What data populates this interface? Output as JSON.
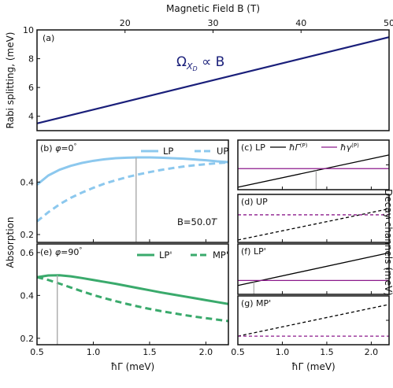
{
  "chart_data": [
    {
      "id": "a",
      "type": "line",
      "panel_label": "(a)",
      "xlabel": "Magnetic Field B (T)",
      "ylabel": "Rabi splitting, (meV)",
      "xlim": [
        10,
        50
      ],
      "ylim": [
        3,
        10
      ],
      "x_ticks": [
        "20",
        "30",
        "40",
        "50"
      ],
      "y_ticks": [
        "4",
        "6",
        "8",
        "10"
      ],
      "annotation": "Ω_{X_D} ∝ B",
      "annotation_main": "Ω",
      "annotation_sub": "X",
      "annotation_subsub": "D",
      "annotation_rest": " ∝ B",
      "series": [
        {
          "color": "#1a1f7a",
          "x": [
            10,
            50
          ],
          "y": [
            3.5,
            9.5
          ]
        }
      ]
    },
    {
      "id": "b",
      "type": "line",
      "panel_label": "(b) φ=0°",
      "panel_text": "(b) ",
      "panel_phi": "φ",
      "panel_eq": "=0",
      "panel_deg": "°",
      "annotation": "B=50.0T",
      "annotation_text": "B=50.0",
      "annotation_unit": "T",
      "ylabel": "Absorption",
      "xlim": [
        0.5,
        2.2
      ],
      "ylim": [
        0.17,
        0.56
      ],
      "y_ticks": [
        "0.2",
        "0.4"
      ],
      "marker_x": 1.38,
      "series": [
        {
          "name": "LP",
          "color": "#8cc8ee",
          "dash": false,
          "x": [
            0.5,
            0.6,
            0.7,
            0.8,
            0.9,
            1.0,
            1.1,
            1.2,
            1.3,
            1.4,
            1.5,
            1.6,
            1.7,
            1.8,
            1.9,
            2.0,
            2.1,
            2.2
          ],
          "y": [
            0.39,
            0.425,
            0.447,
            0.462,
            0.473,
            0.481,
            0.487,
            0.491,
            0.493,
            0.494,
            0.494,
            0.493,
            0.491,
            0.489,
            0.486,
            0.483,
            0.479,
            0.476
          ]
        },
        {
          "name": "UP",
          "color": "#8cc8ee",
          "dash": true,
          "x": [
            0.5,
            0.6,
            0.7,
            0.8,
            0.9,
            1.0,
            1.1,
            1.2,
            1.3,
            1.4,
            1.5,
            1.6,
            1.7,
            1.8,
            1.9,
            2.0,
            2.1,
            2.2
          ],
          "y": [
            0.25,
            0.285,
            0.315,
            0.34,
            0.36,
            0.378,
            0.394,
            0.407,
            0.419,
            0.429,
            0.438,
            0.446,
            0.453,
            0.459,
            0.464,
            0.468,
            0.472,
            0.475
          ]
        }
      ]
    },
    {
      "id": "e",
      "type": "line",
      "panel_label": "(e) φ=90°",
      "panel_text": "(e) ",
      "panel_phi": "φ",
      "panel_eq": "=90",
      "panel_deg": "°",
      "xlabel": "ħΓ (meV)",
      "xlim": [
        0.5,
        2.2
      ],
      "ylim": [
        0.17,
        0.64
      ],
      "x_ticks": [
        "0.5",
        "1.0",
        "1.5",
        "2.0"
      ],
      "y_ticks": [
        "0.2",
        "0.4",
        "0.6"
      ],
      "marker_x": 0.68,
      "series": [
        {
          "name": "LP'",
          "color": "#3aaa6c",
          "dash": false,
          "x": [
            0.5,
            0.6,
            0.7,
            0.8,
            0.9,
            1.0,
            1.1,
            1.2,
            1.3,
            1.4,
            1.5,
            1.6,
            1.7,
            1.8,
            1.9,
            2.0,
            2.1,
            2.2
          ],
          "y": [
            0.485,
            0.493,
            0.494,
            0.489,
            0.481,
            0.472,
            0.463,
            0.454,
            0.444,
            0.434,
            0.424,
            0.414,
            0.405,
            0.396,
            0.387,
            0.378,
            0.369,
            0.36
          ]
        },
        {
          "name": "MP'",
          "color": "#3aaa6c",
          "dash": true,
          "x": [
            0.5,
            0.6,
            0.7,
            0.8,
            0.9,
            1.0,
            1.1,
            1.2,
            1.3,
            1.4,
            1.5,
            1.6,
            1.7,
            1.8,
            1.9,
            2.0,
            2.1,
            2.2
          ],
          "y": [
            0.485,
            0.472,
            0.455,
            0.437,
            0.419,
            0.402,
            0.387,
            0.373,
            0.36,
            0.348,
            0.337,
            0.327,
            0.318,
            0.309,
            0.301,
            0.294,
            0.287,
            0.28
          ]
        }
      ]
    },
    {
      "id": "c",
      "type": "line",
      "panel_label": "(c) LP",
      "xlim": [
        0.5,
        2.2
      ],
      "ylim": [
        0,
        2
      ],
      "y_ticks": [
        "0",
        "1",
        "2"
      ],
      "marker_x": 1.38,
      "series": [
        {
          "name": "ħΓ^(P)",
          "color": "#000000",
          "dash": false,
          "x": [
            0.5,
            2.2
          ],
          "y": [
            0.1,
            1.4
          ]
        },
        {
          "name": "ħγ^(P)",
          "color": "#8b1a8b",
          "dash": false,
          "x": [
            0.5,
            2.2
          ],
          "y": [
            0.85,
            0.85
          ]
        }
      ]
    },
    {
      "id": "d",
      "type": "line",
      "panel_label": "(d) UP",
      "xlim": [
        0.5,
        2.2
      ],
      "ylim": [
        0,
        2
      ],
      "y_ticks": [
        "0",
        "1",
        "2"
      ],
      "series": [
        {
          "color": "#000000",
          "dash": true,
          "x": [
            0.5,
            2.2
          ],
          "y": [
            0.1,
            1.4
          ]
        },
        {
          "color": "#8b1a8b",
          "dash": true,
          "x": [
            0.5,
            2.2
          ],
          "y": [
            1.15,
            1.15
          ]
        }
      ]
    },
    {
      "id": "f",
      "type": "line",
      "panel_label": "(f) LP'",
      "xlim": [
        0.5,
        2.2
      ],
      "ylim": [
        0,
        2
      ],
      "y_ticks": [
        "0",
        "1",
        "2"
      ],
      "marker_x": 0.68,
      "series": [
        {
          "color": "#000000",
          "dash": false,
          "x": [
            0.5,
            2.2
          ],
          "y": [
            0.35,
            1.65
          ]
        },
        {
          "color": "#8b1a8b",
          "dash": false,
          "x": [
            0.5,
            2.2
          ],
          "y": [
            0.55,
            0.55
          ]
        }
      ]
    },
    {
      "id": "g",
      "type": "line",
      "panel_label": "(g) MP'",
      "xlabel": "ħΓ (meV)",
      "xlim": [
        0.5,
        2.2
      ],
      "ylim": [
        0,
        2
      ],
      "x_ticks": [
        "0.5",
        "1.0",
        "1.5",
        "2.0"
      ],
      "y_ticks": [
        "0",
        "1",
        "2"
      ],
      "series": [
        {
          "color": "#000000",
          "dash": true,
          "x": [
            0.5,
            2.2
          ],
          "y": [
            0.35,
            1.65
          ]
        },
        {
          "color": "#8b1a8b",
          "dash": true,
          "x": [
            0.5,
            2.2
          ],
          "y": [
            0.35,
            0.35
          ]
        }
      ]
    }
  ],
  "right_ylabel": "Decay channels (meV)",
  "legend_c": {
    "gamma_big": "ħΓ",
    "gamma_small": "ħγ",
    "sup": "(P)"
  },
  "colors": {
    "marker": "#aaaaaa",
    "frame": "#111111"
  }
}
